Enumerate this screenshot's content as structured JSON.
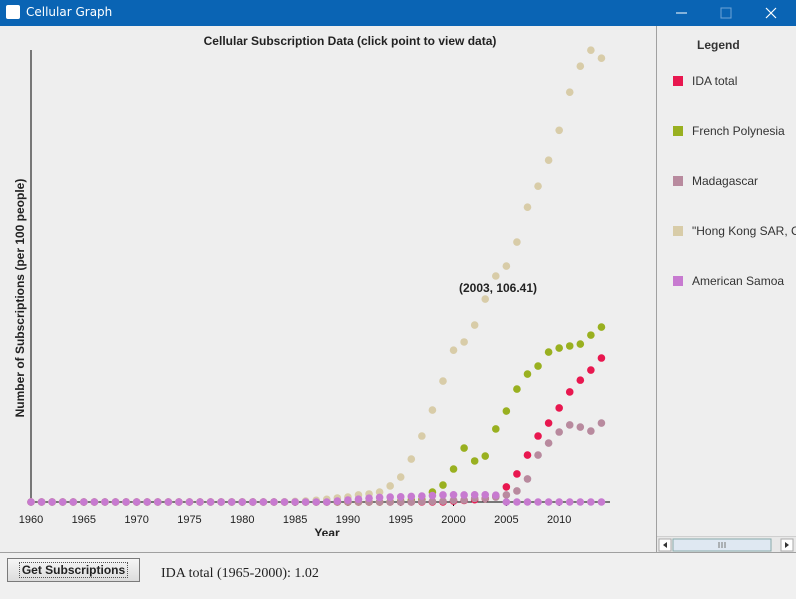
{
  "window_title": "Cellular Graph",
  "chart_data": {
    "type": "scatter",
    "title": "Cellular Subscription Data  (click point to view data)",
    "x_label": "Year",
    "y_label": "Number of Subscriptions (per 100 people)",
    "annotation": "(2003, 106.41)",
    "x": [
      1960,
      1961,
      1962,
      1963,
      1964,
      1965,
      1966,
      1967,
      1968,
      1969,
      1970,
      1971,
      1972,
      1973,
      1974,
      1975,
      1976,
      1977,
      1978,
      1979,
      1980,
      1981,
      1982,
      1983,
      1984,
      1985,
      1986,
      1987,
      1988,
      1989,
      1990,
      1991,
      1992,
      1993,
      1994,
      1995,
      1996,
      1997,
      1998,
      1999,
      2000,
      2001,
      2002,
      2003,
      2004,
      2005,
      2006,
      2007,
      2008,
      2009,
      2010,
      2011,
      2012,
      2013,
      2014
    ],
    "xlim": [
      1960,
      2015
    ],
    "xticks": [
      1960,
      1965,
      1970,
      1975,
      1980,
      1985,
      1990,
      1995,
      2000,
      2005,
      2010
    ],
    "ylim": [
      0,
      237
    ],
    "legend_title": "Legend",
    "series": [
      {
        "name": "IDA total",
        "color": "#e8174f",
        "values": [
          0,
          0,
          0,
          0,
          0,
          0,
          0,
          0,
          0,
          0,
          0,
          0,
          0,
          0,
          0,
          0,
          0,
          0,
          0,
          0,
          0,
          0,
          0,
          0,
          0,
          0,
          0,
          0,
          0,
          0,
          0,
          0,
          0,
          0,
          0,
          0,
          0,
          0,
          0,
          0,
          0.5,
          0.8,
          1.2,
          1.8,
          3.1,
          7.9,
          14.7,
          24.6,
          34.6,
          41.4,
          49.3,
          57.7,
          63.9,
          69.2,
          75.5
        ]
      },
      {
        "name": "French Polynesia",
        "color": "#99b020",
        "values": [
          0,
          0,
          0,
          0,
          0,
          0,
          0,
          0,
          0,
          0,
          0,
          0,
          0,
          0,
          0,
          0,
          0,
          0,
          0,
          0,
          0,
          0,
          0,
          0,
          0,
          0,
          0,
          0,
          0,
          0,
          0,
          0,
          0,
          0,
          0.1,
          0.5,
          1.0,
          1.3,
          5.2,
          8.9,
          17.3,
          28.3,
          21.5,
          24.1,
          38.3,
          47.7,
          59.2,
          67.1,
          71.3,
          78.6,
          80.7,
          81.8,
          82.8,
          87.5,
          91.7
        ]
      },
      {
        "name": "Madagascar",
        "color": "#b88a9e",
        "values": [
          0,
          0,
          0,
          0,
          0,
          0,
          0,
          0,
          0,
          0,
          0,
          0,
          0,
          0,
          0,
          0,
          0,
          0,
          0,
          0,
          0,
          0,
          0,
          0,
          0,
          0,
          0,
          0,
          0,
          0,
          0,
          0,
          0,
          0,
          0,
          0,
          0,
          0.2,
          0.3,
          0.4,
          0.9,
          1.0,
          1.9,
          1.9,
          2.6,
          3.7,
          5.8,
          12.1,
          24.6,
          30.9,
          36.7,
          40.4,
          39.3,
          37.2,
          41.4
        ]
      },
      {
        "name": "\"Hong Kong SAR, China\"",
        "color": "#d8cca8",
        "values": [
          0,
          0,
          0,
          0,
          0,
          0,
          0,
          0,
          0,
          0,
          0,
          0,
          0,
          0,
          0,
          0,
          0,
          0,
          0,
          0,
          0,
          0,
          0,
          0,
          0.1,
          0.3,
          0.5,
          0.9,
          1.4,
          2.1,
          2.6,
          3.7,
          4.2,
          5.2,
          8.4,
          13.1,
          22.5,
          34.6,
          48.2,
          63.4,
          79.6,
          83.9,
          92.8,
          106.41,
          118.5,
          123.7,
          136.3,
          154.6,
          165.6,
          179.2,
          194.9,
          214.9,
          228.5,
          236.9,
          232.7
        ]
      },
      {
        "name": "American Samoa",
        "color": "#c77ad0",
        "values": [
          0,
          0,
          0,
          0,
          0,
          0,
          0,
          0,
          0,
          0,
          0,
          0,
          0,
          0,
          0,
          0,
          0,
          0,
          0,
          0,
          0,
          0,
          0,
          0,
          0,
          0,
          0,
          0,
          0,
          0.5,
          1.0,
          1.5,
          2.0,
          2.4,
          2.6,
          2.7,
          2.9,
          3.1,
          3.4,
          3.7,
          3.8,
          3.7,
          3.8,
          3.8,
          3.6,
          0,
          0,
          0,
          0,
          0,
          0,
          0,
          0,
          0,
          0
        ]
      }
    ]
  },
  "button": "Get Subscriptions",
  "status": "IDA total (1965-2000): 1.02"
}
